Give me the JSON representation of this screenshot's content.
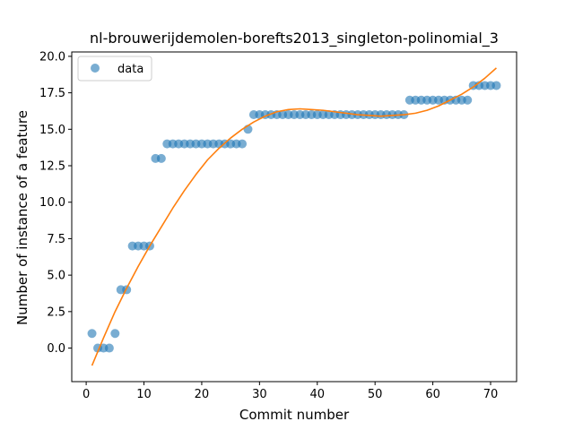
{
  "chart_data": {
    "type": "scatter",
    "title": "nl-brouwerijdemolen-borefts2013_singleton-polinomial_3",
    "xlabel": "Commit number",
    "ylabel": "Number of instance of a feature",
    "xlim": [
      -2.5,
      74.5
    ],
    "ylim": [
      -2.3,
      20.3
    ],
    "x_ticks": [
      0,
      10,
      20,
      30,
      40,
      50,
      60,
      70
    ],
    "y_ticks": [
      0.0,
      2.5,
      5.0,
      7.5,
      10.0,
      12.5,
      15.0,
      17.5,
      20.0
    ],
    "x_tick_labels": [
      "0",
      "10",
      "20",
      "30",
      "40",
      "50",
      "60",
      "70"
    ],
    "y_tick_labels": [
      "0.0",
      "2.5",
      "5.0",
      "7.5",
      "10.0",
      "12.5",
      "15.0",
      "17.5",
      "20.0"
    ],
    "grid": false,
    "legend_position": "upper-left",
    "series": [
      {
        "name": "data",
        "kind": "scatter",
        "color": "#1f77b4",
        "x": [
          1,
          2,
          3,
          4,
          5,
          6,
          7,
          8,
          9,
          10,
          11,
          12,
          13,
          14,
          15,
          16,
          17,
          18,
          19,
          20,
          21,
          22,
          23,
          24,
          25,
          26,
          27,
          28,
          29,
          30,
          31,
          32,
          33,
          34,
          35,
          36,
          37,
          38,
          39,
          40,
          41,
          42,
          43,
          44,
          45,
          46,
          47,
          48,
          49,
          50,
          51,
          52,
          53,
          54,
          55,
          56,
          57,
          58,
          59,
          60,
          61,
          62,
          63,
          64,
          65,
          66,
          67,
          68,
          69,
          70,
          71
        ],
        "y": [
          1,
          0,
          0,
          0,
          1,
          4,
          4,
          7,
          7,
          7,
          7,
          13,
          13,
          14,
          14,
          14,
          14,
          14,
          14,
          14,
          14,
          14,
          14,
          14,
          14,
          14,
          14,
          15,
          16,
          16,
          16,
          16,
          16,
          16,
          16,
          16,
          16,
          16,
          16,
          16,
          16,
          16,
          16,
          16,
          16,
          16,
          16,
          16,
          16,
          16,
          16,
          16,
          16,
          16,
          16,
          17,
          17,
          17,
          17,
          17,
          17,
          17,
          17,
          17,
          17,
          17,
          18,
          18,
          18,
          18,
          18
        ]
      },
      {
        "kind": "line",
        "color": "#ff7f0e",
        "x": [
          1,
          3,
          5,
          7,
          9,
          11,
          13,
          15,
          17,
          19,
          21,
          23,
          25,
          27,
          29,
          31,
          33,
          35,
          37,
          39,
          41,
          43,
          45,
          47,
          49,
          51,
          53,
          55,
          57,
          59,
          61,
          63,
          65,
          67,
          69,
          71
        ],
        "y": [
          -1.2,
          0.7,
          2.5,
          4.1,
          5.6,
          7.0,
          8.3,
          9.6,
          10.8,
          11.9,
          12.9,
          13.7,
          14.4,
          15.0,
          15.5,
          15.9,
          16.2,
          16.35,
          16.4,
          16.35,
          16.3,
          16.2,
          16.1,
          16.0,
          15.95,
          15.9,
          15.95,
          16.0,
          16.1,
          16.3,
          16.6,
          17.0,
          17.4,
          17.9,
          18.5,
          19.2
        ]
      }
    ]
  }
}
